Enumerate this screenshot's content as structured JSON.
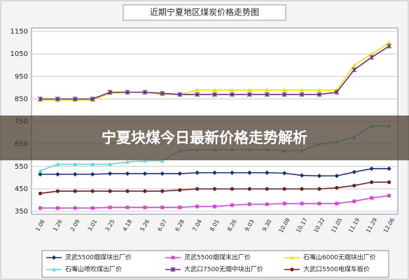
{
  "chart_data": {
    "type": "line",
    "title": "近期宁夏地区煤炭价格走势图",
    "categories": [
      "1.06",
      "1.26",
      "2.09",
      "3.01",
      "3.25",
      "4.18",
      "5.26",
      "6.07",
      "6.28",
      "7.04",
      "8.01",
      "8.26",
      "9.03",
      "9.30",
      "10.08",
      "10.17",
      "10.22",
      "11.05",
      "11.19",
      "11.29",
      "12.06"
    ],
    "series": [
      {
        "name": "灵武5500烟煤块出厂价",
        "color": "#1c2f7a",
        "marker": "diamond",
        "values": [
          515,
          515,
          515,
          515,
          518,
          518,
          518,
          518,
          518,
          522,
          522,
          522,
          522,
          522,
          520,
          510,
          508,
          508,
          525,
          540,
          540
        ]
      },
      {
        "name": "灵武5500烟煤末出厂价",
        "color": "#e040e0",
        "marker": "square",
        "values": [
          365,
          365,
          365,
          365,
          368,
          368,
          368,
          368,
          368,
          372,
          372,
          378,
          382,
          382,
          385,
          385,
          385,
          385,
          395,
          410,
          420
        ]
      },
      {
        "name": "石嘴山6000无烟块出厂价",
        "color": "#e6e600",
        "marker": "triangle",
        "values": [
          845,
          845,
          845,
          845,
          875,
          880,
          880,
          870,
          870,
          890,
          890,
          890,
          890,
          890,
          890,
          890,
          890,
          890,
          1000,
          1050,
          1100
        ]
      },
      {
        "name": "石嘴山喷吹煤出厂价",
        "color": "#5fd8dc",
        "marker": "triangle",
        "values": [
          530,
          560,
          560,
          560,
          560,
          570,
          575,
          575,
          620,
          625,
          625,
          625,
          625,
          625,
          620,
          620,
          650,
          660,
          680,
          730,
          730
        ]
      },
      {
        "name": "大武口7500无烟中块出厂价",
        "color": "#6a2a8a",
        "marker": "star",
        "values": [
          850,
          850,
          850,
          850,
          880,
          880,
          880,
          875,
          870,
          870,
          870,
          870,
          870,
          870,
          870,
          870,
          870,
          880,
          980,
          1035,
          1085
        ]
      },
      {
        "name": "大武口5500电煤车板价",
        "color": "#7a1a1a",
        "marker": "circle",
        "values": [
          430,
          440,
          440,
          440,
          440,
          440,
          440,
          440,
          445,
          450,
          450,
          450,
          450,
          450,
          450,
          450,
          450,
          455,
          465,
          480,
          480
        ]
      }
    ],
    "ylim": [
      350,
      1150
    ],
    "yticks": [
      350,
      450,
      550,
      650,
      750,
      850,
      950,
      1050,
      1150
    ],
    "grid": true
  },
  "banner": {
    "text": "宁夏块煤今日最新价格走势解析"
  }
}
